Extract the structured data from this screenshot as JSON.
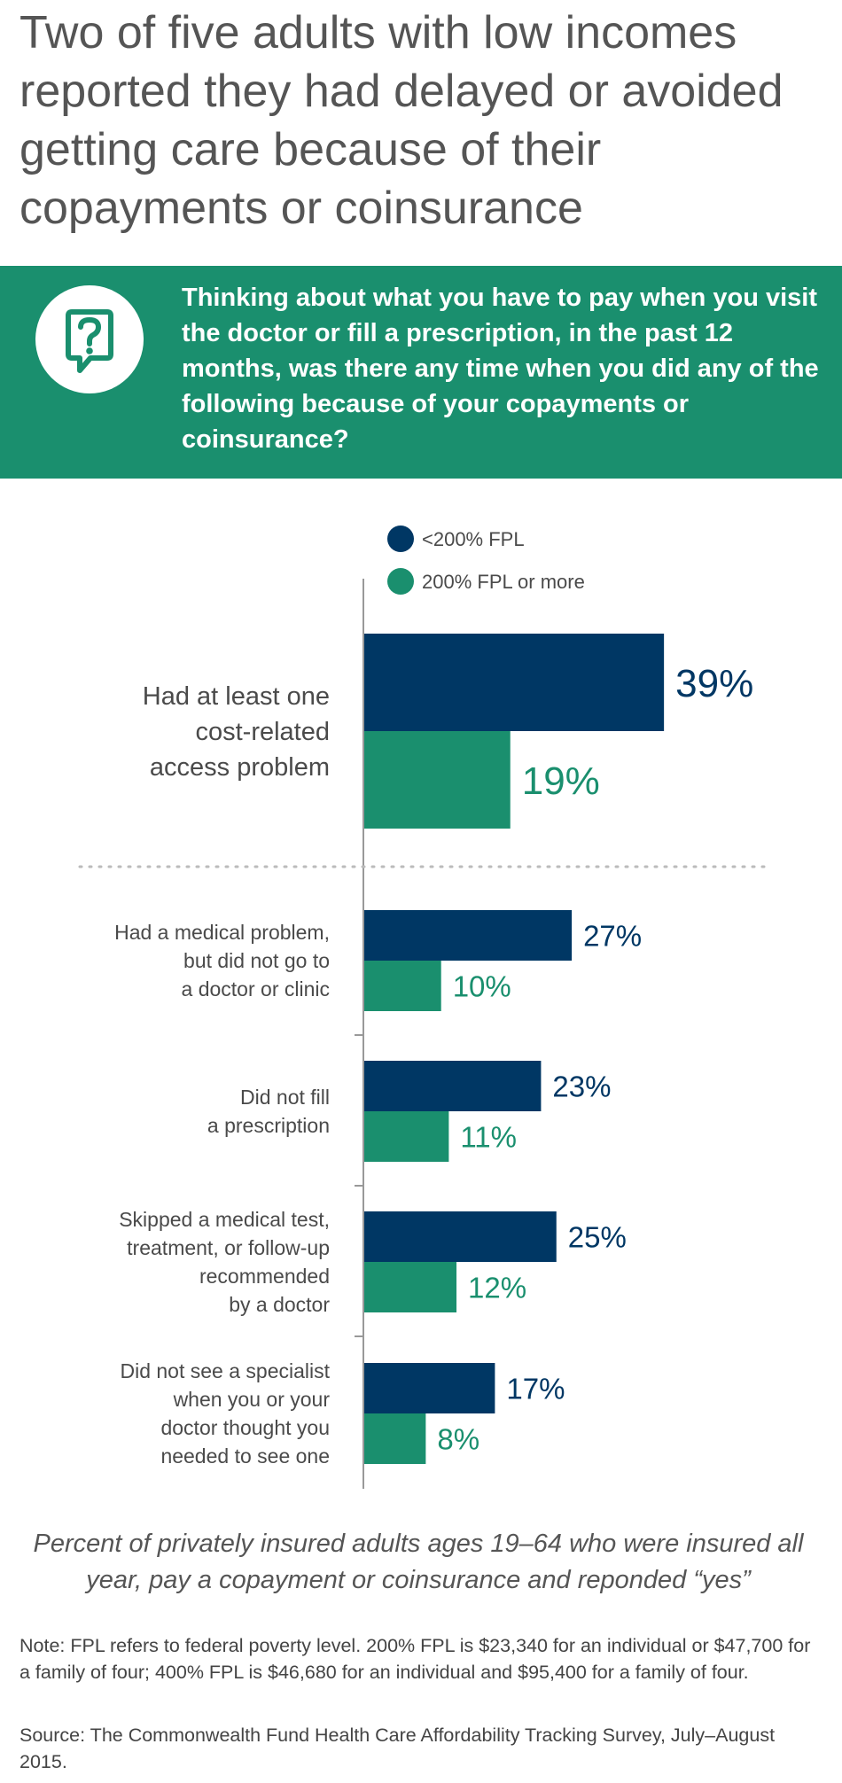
{
  "title": "Two of five adults with low incomes reported they had delayed or avoided getting care because of their copayments or coinsurance",
  "question": {
    "icon": "question-speech-bubble-icon",
    "text": "Thinking about what you have to pay when you visit the doctor or fill a prescription, in the past 12 months, was there any time when you did any of the following because of your copayments or coinsurance?"
  },
  "colors": {
    "navy": "#003764",
    "green": "#1a8f6e",
    "banner": "#1a8f6e"
  },
  "chart_data": {
    "type": "bar",
    "orientation": "horizontal",
    "grid": false,
    "legend_position": "top",
    "xlim": [
      0,
      45
    ],
    "categories": [
      [
        "Had at least one",
        "cost-related",
        "access problem"
      ],
      [
        "Had a medical problem,",
        "but did not go to",
        "a doctor or clinic"
      ],
      [
        "Did not fill",
        "a prescription"
      ],
      [
        "Skipped a medical test,",
        "treatment, or follow-up",
        "recommended",
        "by a doctor"
      ],
      [
        "Did not see a specialist",
        "when you or your",
        "doctor thought you",
        "needed to see one"
      ]
    ],
    "series": [
      {
        "name": "<200% FPL",
        "color": "#003764",
        "values": [
          39,
          27,
          23,
          25,
          17
        ],
        "labels": [
          "39%",
          "27%",
          "23%",
          "25%",
          "17%"
        ]
      },
      {
        "name": "200% FPL or more",
        "color": "#1a8f6e",
        "values": [
          19,
          10,
          11,
          12,
          8
        ],
        "labels": [
          "19%",
          "10%",
          "11%",
          "12%",
          "8%"
        ]
      }
    ]
  },
  "footnote": "Percent of privately insured adults ages 19–64 who were insured all year, pay a copayment or coinsurance and reponded “yes”",
  "note": "Note: FPL refers to federal poverty level. 200% FPL is $23,340 for an individual or $47,700 for a family of four; 400% FPL is $46,680 for an individual and $95,400 for a family of four.",
  "source": "Source: The Commonwealth Fund Health Care Affordability Tracking Survey, July–August 2015."
}
